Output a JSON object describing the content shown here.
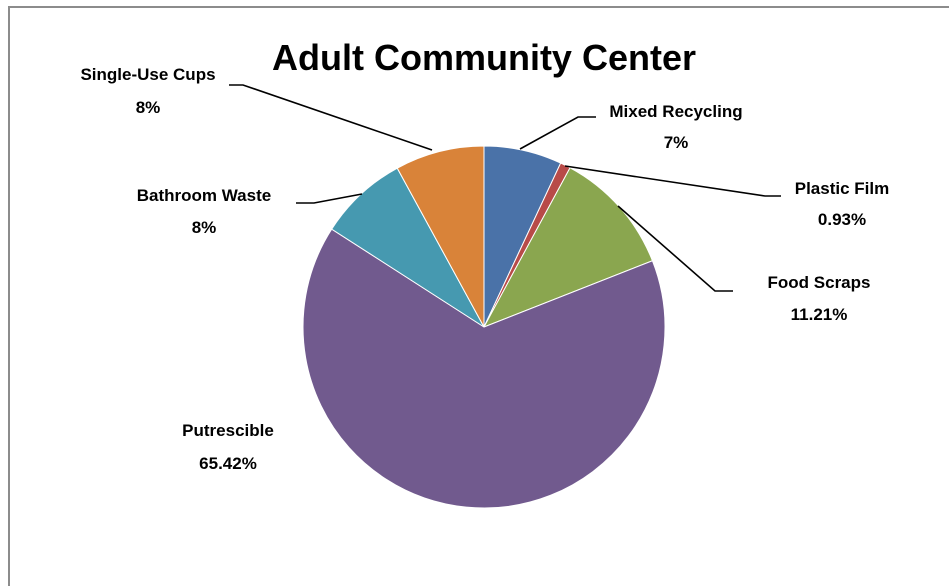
{
  "chart_data": {
    "type": "pie",
    "title": "Adult Community Center",
    "legend": "none",
    "slices": [
      {
        "label": "Mixed Recycling",
        "value": 7,
        "value_label": "7%",
        "color": "#4a72a8"
      },
      {
        "label": "Plastic Film",
        "value": 0.93,
        "value_label": "0.93%",
        "color": "#b84b48"
      },
      {
        "label": "Food Scraps",
        "value": 11.21,
        "value_label": "11.21%",
        "color": "#8aa64f"
      },
      {
        "label": "Putrescible",
        "value": 65.42,
        "value_label": "65.42%",
        "color": "#715a8e"
      },
      {
        "label": "Bathroom Waste",
        "value": 8,
        "value_label": "8%",
        "color": "#4699b0"
      },
      {
        "label": "Single-Use Cups",
        "value": 8,
        "value_label": "8%",
        "color": "#d98339"
      }
    ]
  }
}
